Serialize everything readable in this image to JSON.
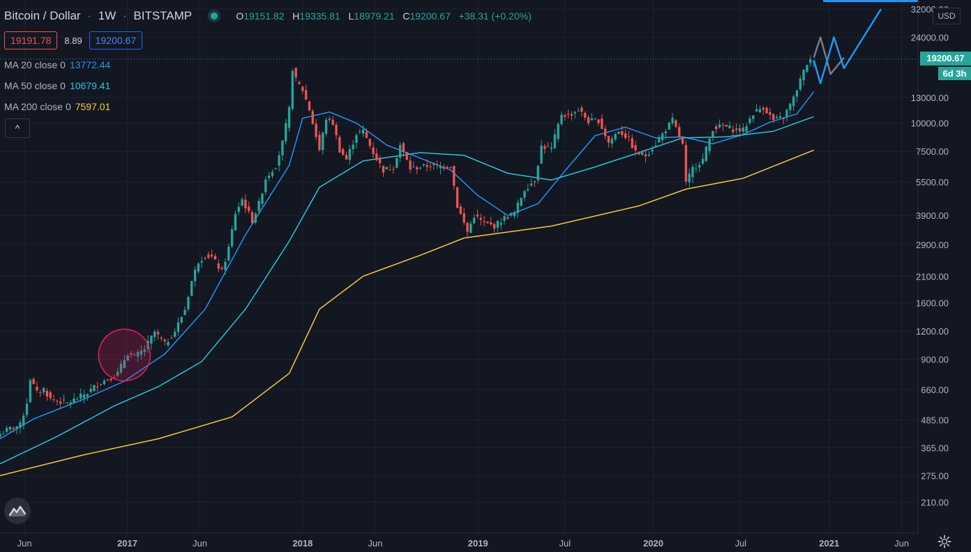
{
  "header": {
    "symbol": "Bitcoin / Dollar",
    "interval": "1W",
    "exchange": "BITSTAMP",
    "open_label": "O",
    "open": "19151.82",
    "high_label": "H",
    "high": "19335.81",
    "low_label": "L",
    "low": "18979.21",
    "close_label": "C",
    "close": "19200.67",
    "change": "+38.31 (+0.20%)",
    "bid": "19191.78",
    "spread": "8.89",
    "ask": "19200.67"
  },
  "indicators": [
    {
      "label": "MA 20 close 0",
      "value": "13772.44",
      "color": "#2196f3"
    },
    {
      "label": "MA 50 close 0",
      "value": "10679.41",
      "color": "#26c6da"
    },
    {
      "label": "MA 200 close 0",
      "value": "7597.01",
      "color": "#f9c93e"
    }
  ],
  "collapse_icon": "chevron-up-icon",
  "currency": "USD",
  "price_tag": "19200.67",
  "time_tag": "6d 3h",
  "logo_icon": "tradingview-logo-icon",
  "settings_icon": "gear-icon",
  "colors": {
    "background": "#131722",
    "up": "#26a69a",
    "down": "#ef5350",
    "grid": "#1e222d",
    "text": "#b2b5be"
  },
  "chart_data": {
    "type": "candlestick",
    "scale": "log",
    "ylim": [
      180,
      32000
    ],
    "xlim": [
      "2016-04-11",
      "2021-07-05"
    ],
    "y_ticks": [
      "210.00",
      "275.00",
      "365.00",
      "485.00",
      "660.00",
      "900.00",
      "1200.00",
      "1600.00",
      "2100.00",
      "2900.00",
      "3900.00",
      "5500.00",
      "7500.00",
      "10000.00",
      "13000.00",
      "19200.67",
      "24000.00",
      "32000.00"
    ],
    "y_tick_values": [
      210,
      275,
      365,
      485,
      660,
      900,
      1200,
      1600,
      2100,
      2900,
      3900,
      5500,
      7500,
      10000,
      13000,
      19200.67,
      24000,
      32000
    ],
    "x_ticks": [
      {
        "label": "Jun",
        "date": "2016-06-01"
      },
      {
        "label": "2017",
        "date": "2017-01-01"
      },
      {
        "label": "Jun",
        "date": "2017-06-01"
      },
      {
        "label": "2018",
        "date": "2018-01-01"
      },
      {
        "label": "Jun",
        "date": "2018-06-01"
      },
      {
        "label": "2019",
        "date": "2019-01-01"
      },
      {
        "label": "Jul",
        "date": "2019-07-01"
      },
      {
        "label": "2020",
        "date": "2020-01-01"
      },
      {
        "label": "Jul",
        "date": "2020-07-01"
      },
      {
        "label": "2021",
        "date": "2021-01-01"
      },
      {
        "label": "Jun",
        "date": "2021-06-01"
      }
    ],
    "close_series": [
      [
        "2016-04-11",
        420
      ],
      [
        "2016-05-02",
        445
      ],
      [
        "2016-05-23",
        460
      ],
      [
        "2016-06-06",
        580
      ],
      [
        "2016-06-13",
        740
      ],
      [
        "2016-06-27",
        640
      ],
      [
        "2016-07-11",
        665
      ],
      [
        "2016-07-25",
        600
      ],
      [
        "2016-08-08",
        590
      ],
      [
        "2016-08-29",
        575
      ],
      [
        "2016-09-19",
        605
      ],
      [
        "2016-10-10",
        640
      ],
      [
        "2016-10-31",
        700
      ],
      [
        "2016-11-21",
        735
      ],
      [
        "2016-12-12",
        780
      ],
      [
        "2016-12-26",
        900
      ],
      [
        "2017-01-02",
        960
      ],
      [
        "2017-01-16",
        920
      ],
      [
        "2017-02-06",
        1000
      ],
      [
        "2017-02-27",
        1190
      ],
      [
        "2017-03-20",
        1050
      ],
      [
        "2017-04-10",
        1200
      ],
      [
        "2017-05-01",
        1500
      ],
      [
        "2017-05-15",
        2000
      ],
      [
        "2017-05-29",
        2450
      ],
      [
        "2017-06-12",
        2600
      ],
      [
        "2017-06-26",
        2550
      ],
      [
        "2017-07-17",
        2200
      ],
      [
        "2017-07-31",
        2800
      ],
      [
        "2017-08-14",
        4000
      ],
      [
        "2017-08-28",
        4600
      ],
      [
        "2017-09-18",
        3700
      ],
      [
        "2017-10-02",
        4400
      ],
      [
        "2017-10-16",
        5700
      ],
      [
        "2017-11-06",
        6500
      ],
      [
        "2017-11-20",
        8200
      ],
      [
        "2017-12-04",
        11500
      ],
      [
        "2017-12-11",
        17500
      ],
      [
        "2017-12-18",
        15500
      ],
      [
        "2018-01-01",
        14000
      ],
      [
        "2018-01-15",
        11500
      ],
      [
        "2018-02-05",
        7600
      ],
      [
        "2018-02-19",
        10500
      ],
      [
        "2018-03-05",
        10000
      ],
      [
        "2018-03-19",
        7600
      ],
      [
        "2018-04-02",
        6900
      ],
      [
        "2018-04-23",
        9000
      ],
      [
        "2018-05-07",
        9200
      ],
      [
        "2018-05-28",
        7400
      ],
      [
        "2018-06-18",
        6200
      ],
      [
        "2018-07-09",
        6400
      ],
      [
        "2018-07-23",
        8000
      ],
      [
        "2018-08-13",
        6300
      ],
      [
        "2018-09-03",
        6400
      ],
      [
        "2018-09-24",
        6500
      ],
      [
        "2018-10-15",
        6400
      ],
      [
        "2018-11-05",
        6500
      ],
      [
        "2018-11-19",
        4300
      ],
      [
        "2018-12-10",
        3300
      ],
      [
        "2018-12-24",
        3900
      ],
      [
        "2019-01-14",
        3600
      ],
      [
        "2019-02-04",
        3500
      ],
      [
        "2019-02-25",
        3800
      ],
      [
        "2019-03-18",
        4000
      ],
      [
        "2019-04-08",
        5100
      ],
      [
        "2019-04-29",
        5600
      ],
      [
        "2019-05-13",
        7900
      ],
      [
        "2019-06-03",
        7700
      ],
      [
        "2019-06-24",
        11000
      ],
      [
        "2019-07-08",
        10800
      ],
      [
        "2019-07-29",
        11500
      ],
      [
        "2019-08-19",
        10200
      ],
      [
        "2019-09-09",
        10300
      ],
      [
        "2019-09-30",
        8200
      ],
      [
        "2019-10-21",
        9300
      ],
      [
        "2019-11-11",
        8500
      ],
      [
        "2019-11-25",
        7400
      ],
      [
        "2019-12-16",
        7200
      ],
      [
        "2020-01-06",
        8100
      ],
      [
        "2020-01-27",
        9400
      ],
      [
        "2020-02-10",
        10300
      ],
      [
        "2020-03-02",
        8000
      ],
      [
        "2020-03-09",
        5400
      ],
      [
        "2020-03-23",
        6300
      ],
      [
        "2020-04-13",
        6900
      ],
      [
        "2020-05-04",
        9500
      ],
      [
        "2020-05-25",
        9700
      ],
      [
        "2020-06-15",
        9400
      ],
      [
        "2020-07-06",
        9300
      ],
      [
        "2020-07-27",
        11100
      ],
      [
        "2020-08-17",
        11800
      ],
      [
        "2020-09-07",
        10300
      ],
      [
        "2020-09-28",
        10600
      ],
      [
        "2020-10-19",
        12900
      ],
      [
        "2020-11-02",
        15500
      ],
      [
        "2020-11-16",
        18400
      ],
      [
        "2020-11-30",
        19200.67
      ]
    ],
    "series": [
      {
        "name": "MA 20 close 0",
        "color": "#2196f3",
        "points": [
          [
            "2016-04-11",
            400
          ],
          [
            "2016-06-20",
            490
          ],
          [
            "2016-10-03",
            600
          ],
          [
            "2016-12-26",
            720
          ],
          [
            "2017-03-20",
            950
          ],
          [
            "2017-06-12",
            1500
          ],
          [
            "2017-09-04",
            3200
          ],
          [
            "2017-12-04",
            6500
          ],
          [
            "2018-01-01",
            10500
          ],
          [
            "2018-02-26",
            11200
          ],
          [
            "2018-04-23",
            10000
          ],
          [
            "2018-06-25",
            8000
          ],
          [
            "2018-09-03",
            7000
          ],
          [
            "2018-11-05",
            6200
          ],
          [
            "2018-12-31",
            4800
          ],
          [
            "2019-03-04",
            3900
          ],
          [
            "2019-05-06",
            4400
          ],
          [
            "2019-07-08",
            6400
          ],
          [
            "2019-09-02",
            8800
          ],
          [
            "2019-11-04",
            9600
          ],
          [
            "2020-01-06",
            8600
          ],
          [
            "2020-03-02",
            8700
          ],
          [
            "2020-05-04",
            8100
          ],
          [
            "2020-07-06",
            8900
          ],
          [
            "2020-08-31",
            10100
          ],
          [
            "2020-10-26",
            11000
          ],
          [
            "2020-11-30",
            13772.44
          ]
        ]
      },
      {
        "name": "MA 50 close 0",
        "color": "#26c6da",
        "points": [
          [
            "2016-04-11",
            310
          ],
          [
            "2016-08-08",
            410
          ],
          [
            "2016-12-05",
            560
          ],
          [
            "2017-03-06",
            680
          ],
          [
            "2017-06-05",
            880
          ],
          [
            "2017-09-04",
            1500
          ],
          [
            "2017-12-04",
            3000
          ],
          [
            "2018-02-05",
            5200
          ],
          [
            "2018-05-07",
            6800
          ],
          [
            "2018-09-03",
            7400
          ],
          [
            "2018-12-03",
            7200
          ],
          [
            "2019-03-04",
            6000
          ],
          [
            "2019-06-03",
            5600
          ],
          [
            "2019-09-02",
            6400
          ],
          [
            "2019-12-02",
            7400
          ],
          [
            "2020-03-02",
            8600
          ],
          [
            "2020-06-01",
            8700
          ],
          [
            "2020-09-07",
            9200
          ],
          [
            "2020-11-30",
            10679.41
          ]
        ]
      },
      {
        "name": "MA 200 close 0",
        "color": "#f9c93e",
        "points": [
          [
            "2016-04-11",
            275
          ],
          [
            "2016-10-03",
            340
          ],
          [
            "2017-03-06",
            400
          ],
          [
            "2017-08-07",
            500
          ],
          [
            "2017-12-04",
            780
          ],
          [
            "2018-02-05",
            1500
          ],
          [
            "2018-05-07",
            2100
          ],
          [
            "2018-09-03",
            2600
          ],
          [
            "2018-12-03",
            3100
          ],
          [
            "2019-06-03",
            3500
          ],
          [
            "2019-12-02",
            4300
          ],
          [
            "2020-03-09",
            5100
          ],
          [
            "2020-07-06",
            5700
          ],
          [
            "2020-11-30",
            7597.01
          ]
        ]
      }
    ],
    "projections": [
      {
        "color": "#787b86",
        "points": [
          [
            "2020-11-30",
            19500
          ],
          [
            "2020-12-14",
            24000
          ],
          [
            "2021-01-04",
            16500
          ],
          [
            "2021-02-01",
            19500
          ]
        ]
      },
      {
        "color": "#2196f3",
        "points": [
          [
            "2020-11-30",
            19000
          ],
          [
            "2020-12-14",
            15000
          ],
          [
            "2021-01-11",
            24000
          ],
          [
            "2021-02-01",
            17500
          ],
          [
            "2021-04-19",
            32000
          ]
        ]
      }
    ],
    "annotation": {
      "type": "ellipse",
      "color": "#e91e63",
      "center": [
        "2016-12-26",
        940
      ],
      "note": ""
    }
  }
}
